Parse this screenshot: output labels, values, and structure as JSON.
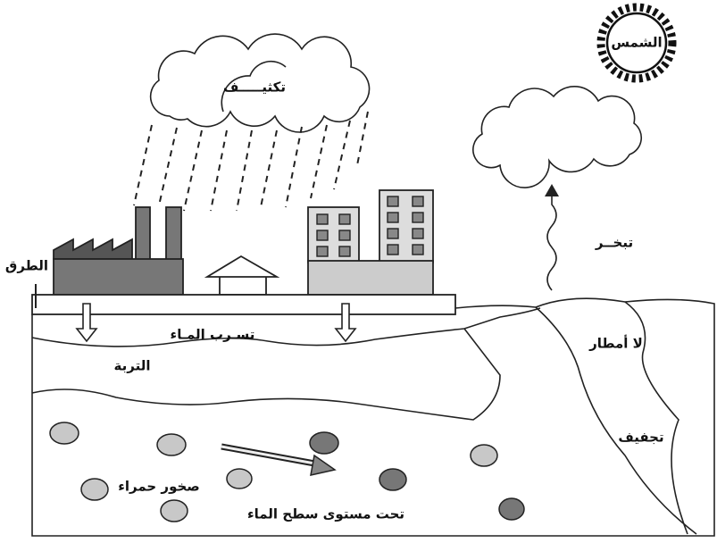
{
  "labels": {
    "sun": "الشمس",
    "condensation": "تكثيـــــف",
    "evaporation": "تبخــر",
    "roads": "الطرق",
    "seepage": "تسـرب المـاء",
    "soil": "التربة",
    "no_rain": "لا أمطار",
    "drying": "تجفيف",
    "red_rocks": "صخور حمراء",
    "below_water_level": "تحت مستوى سطح الماء"
  }
}
